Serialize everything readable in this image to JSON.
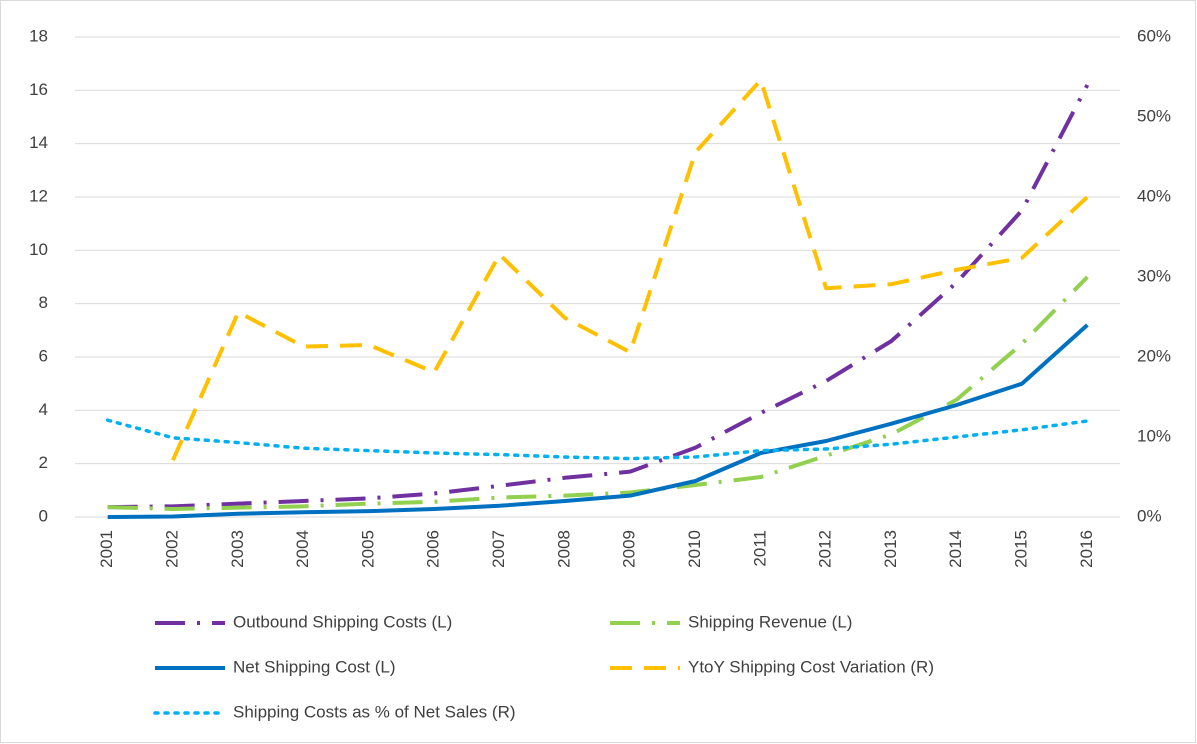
{
  "chart_data": {
    "type": "line",
    "categories": [
      "2001",
      "2002",
      "2003",
      "2004",
      "2005",
      "2006",
      "2007",
      "2008",
      "2009",
      "2010",
      "2011",
      "2012",
      "2013",
      "2014",
      "2015",
      "2016"
    ],
    "series": [
      {
        "name": "Outbound Shipping Costs (L)",
        "color": "#7030a0",
        "dash": "long-dash-dot",
        "axis": "y",
        "values": [
          0.37,
          0.4,
          0.5,
          0.6,
          0.7,
          0.88,
          1.17,
          1.47,
          1.7,
          2.6,
          3.9,
          5.1,
          6.6,
          8.8,
          11.5,
          16.2
        ]
      },
      {
        "name": "Shipping Revenue (L)",
        "color": "#92d050",
        "dash": "long-dash-dot",
        "axis": "y",
        "values": [
          0.37,
          0.3,
          0.35,
          0.4,
          0.5,
          0.57,
          0.73,
          0.8,
          0.92,
          1.2,
          1.5,
          2.3,
          3.1,
          4.4,
          6.5,
          9.0
        ]
      },
      {
        "name": "Net Shipping Cost (L)",
        "color": "#0070c0",
        "dash": "solid",
        "axis": "y",
        "values": [
          0,
          0.02,
          0.12,
          0.18,
          0.22,
          0.3,
          0.42,
          0.6,
          0.8,
          1.35,
          2.4,
          2.85,
          3.5,
          4.2,
          5.0,
          7.2
        ]
      },
      {
        "name": "YtoY Shipping Cost Variation (R)",
        "color": "#ffc000",
        "dash": "dash",
        "axis": "y2",
        "values": [
          null,
          7.1,
          25.6,
          21.3,
          21.5,
          18.1,
          32.8,
          24.9,
          20.6,
          45.6,
          54.6,
          28.6,
          29.1,
          30.9,
          32.4,
          40
        ]
      },
      {
        "name": "Shipping Costs as % of Net Sales (R)",
        "color": "#00b0f0",
        "dash": "dot",
        "axis": "y2",
        "values": [
          12.1,
          9.9,
          9.3,
          8.6,
          8.3,
          8,
          7.8,
          7.5,
          7.3,
          7.5,
          8.3,
          8.5,
          9.1,
          10,
          10.9,
          12
        ]
      }
    ],
    "ylim": [
      0,
      18
    ],
    "yticks": [
      0,
      2,
      4,
      6,
      8,
      10,
      12,
      14,
      16,
      18
    ],
    "y2lim": [
      0,
      60
    ],
    "y2ticks": [
      {
        "value": 0,
        "label": "0%"
      },
      {
        "value": 10,
        "label": "10%"
      },
      {
        "value": 20,
        "label": "20%"
      },
      {
        "value": 30,
        "label": "30%"
      },
      {
        "value": 40,
        "label": "40%"
      },
      {
        "value": 50,
        "label": "50%"
      },
      {
        "value": 60,
        "label": "60%"
      }
    ],
    "grid": true,
    "legend": "bottom"
  }
}
